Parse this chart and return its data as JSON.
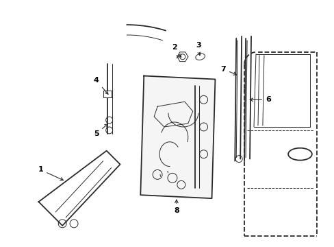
{
  "bg_color": "#ffffff",
  "line_color": "#2a2a2a",
  "label_color": "#000000",
  "lw_main": 1.3,
  "lw_thin": 0.7,
  "lw_med": 1.0
}
